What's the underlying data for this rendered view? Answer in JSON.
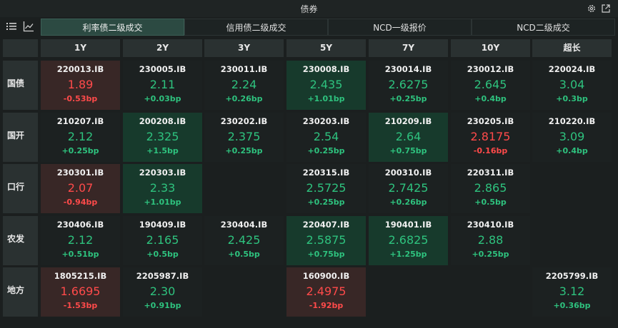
{
  "window": {
    "title": "债券",
    "settings_icon": "gear-icon",
    "popout_icon": "external-link-icon"
  },
  "view_toggle": {
    "list_icon": "list-icon",
    "chart_icon": "line-chart-icon"
  },
  "tabs": [
    {
      "label": "利率债二级成交",
      "active": true
    },
    {
      "label": "信用债二级成交",
      "active": false
    },
    {
      "label": "NCD一级报价",
      "active": false
    },
    {
      "label": "NCD二级成交",
      "active": false
    }
  ],
  "columns": [
    "1Y",
    "2Y",
    "3Y",
    "5Y",
    "7Y",
    "10Y",
    "超长"
  ],
  "rows": [
    {
      "label": "国债",
      "cells": [
        {
          "code": "220013.IB",
          "yield": "1.89",
          "change": "-0.53bp",
          "dir": "down",
          "bg": "down"
        },
        {
          "code": "230005.IB",
          "yield": "2.11",
          "change": "+0.03bp",
          "dir": "up",
          "bg": "none"
        },
        {
          "code": "230011.IB",
          "yield": "2.24",
          "change": "+0.26bp",
          "dir": "up",
          "bg": "none"
        },
        {
          "code": "230008.IB",
          "yield": "2.435",
          "change": "+1.01bp",
          "dir": "up",
          "bg": "up"
        },
        {
          "code": "230014.IB",
          "yield": "2.6275",
          "change": "+0.25bp",
          "dir": "up",
          "bg": "none"
        },
        {
          "code": "230012.IB",
          "yield": "2.645",
          "change": "+0.4bp",
          "dir": "up",
          "bg": "none"
        },
        {
          "code": "220024.IB",
          "yield": "3.04",
          "change": "+0.3bp",
          "dir": "up",
          "bg": "none"
        }
      ]
    },
    {
      "label": "国开",
      "cells": [
        {
          "code": "210207.IB",
          "yield": "2.12",
          "change": "+0.25bp",
          "dir": "up",
          "bg": "none"
        },
        {
          "code": "200208.IB",
          "yield": "2.325",
          "change": "+1.5bp",
          "dir": "up",
          "bg": "up"
        },
        {
          "code": "230202.IB",
          "yield": "2.375",
          "change": "+0.25bp",
          "dir": "up",
          "bg": "none"
        },
        {
          "code": "230203.IB",
          "yield": "2.54",
          "change": "+0.25bp",
          "dir": "up",
          "bg": "none"
        },
        {
          "code": "210209.IB",
          "yield": "2.64",
          "change": "+0.75bp",
          "dir": "up",
          "bg": "up"
        },
        {
          "code": "230205.IB",
          "yield": "2.8175",
          "change": "-0.16bp",
          "dir": "down",
          "bg": "none"
        },
        {
          "code": "210220.IB",
          "yield": "3.09",
          "change": "+0.4bp",
          "dir": "up",
          "bg": "none"
        }
      ]
    },
    {
      "label": "口行",
      "cells": [
        {
          "code": "230301.IB",
          "yield": "2.07",
          "change": "-0.94bp",
          "dir": "down",
          "bg": "down"
        },
        {
          "code": "220303.IB",
          "yield": "2.33",
          "change": "+1.01bp",
          "dir": "up",
          "bg": "up"
        },
        null,
        {
          "code": "220315.IB",
          "yield": "2.5725",
          "change": "+0.25bp",
          "dir": "up",
          "bg": "none"
        },
        {
          "code": "200310.IB",
          "yield": "2.7425",
          "change": "+0.26bp",
          "dir": "up",
          "bg": "none"
        },
        {
          "code": "220311.IB",
          "yield": "2.865",
          "change": "+0.5bp",
          "dir": "up",
          "bg": "none"
        },
        null
      ]
    },
    {
      "label": "农发",
      "cells": [
        {
          "code": "230406.IB",
          "yield": "2.12",
          "change": "+0.51bp",
          "dir": "up",
          "bg": "none"
        },
        {
          "code": "190409.IB",
          "yield": "2.165",
          "change": "+0.5bp",
          "dir": "up",
          "bg": "none"
        },
        {
          "code": "230404.IB",
          "yield": "2.425",
          "change": "+0.5bp",
          "dir": "up",
          "bg": "none"
        },
        {
          "code": "220407.IB",
          "yield": "2.5875",
          "change": "+0.75bp",
          "dir": "up",
          "bg": "up"
        },
        {
          "code": "190401.IB",
          "yield": "2.6825",
          "change": "+1.25bp",
          "dir": "up",
          "bg": "up"
        },
        {
          "code": "230410.IB",
          "yield": "2.88",
          "change": "+0.25bp",
          "dir": "up",
          "bg": "none"
        },
        null
      ]
    },
    {
      "label": "地方",
      "cells": [
        {
          "code": "1805215.IB",
          "yield": "1.6695",
          "change": "-1.53bp",
          "dir": "down",
          "bg": "down"
        },
        {
          "code": "2205987.IB",
          "yield": "2.30",
          "change": "+0.91bp",
          "dir": "up",
          "bg": "none"
        },
        null,
        {
          "code": "160900.IB",
          "yield": "2.4975",
          "change": "-1.92bp",
          "dir": "down",
          "bg": "down"
        },
        null,
        null,
        {
          "code": "2205799.IB",
          "yield": "3.12",
          "change": "+0.36bp",
          "dir": "up",
          "bg": "none"
        }
      ]
    }
  ]
}
